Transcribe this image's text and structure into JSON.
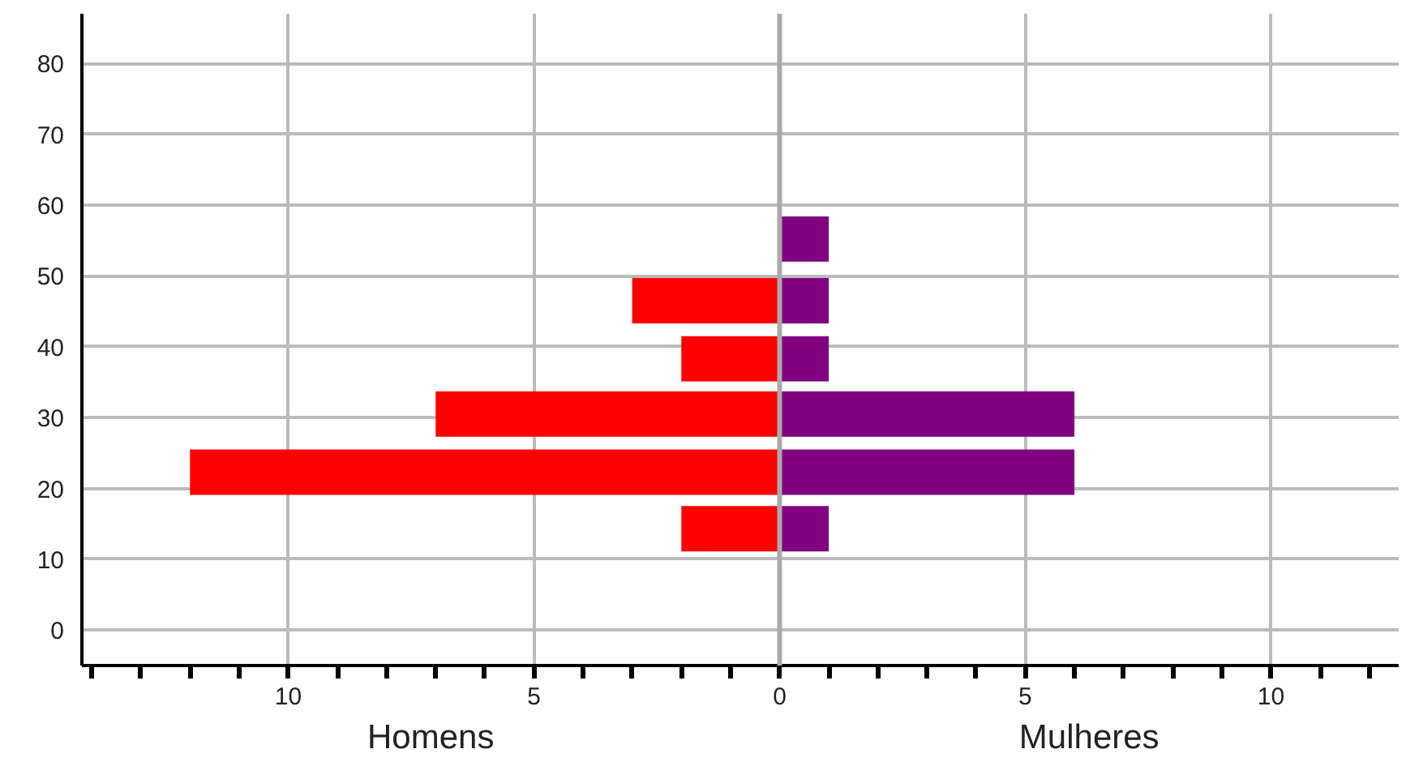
{
  "chart_data": {
    "type": "bar",
    "orientation": "horizontal",
    "stacked": true,
    "x": [
      14.3,
      22.3,
      30.5,
      38.3,
      46.5,
      55.2
    ],
    "series": [
      {
        "color": "#ff0000",
        "values": [
          -2,
          -12,
          -7,
          -2,
          -3,
          null
        ]
      },
      {
        "color": "#800080",
        "values": [
          1,
          6,
          6,
          1,
          1,
          1
        ]
      }
    ],
    "xlim": [
      -14.2,
      12.6
    ],
    "xticks": [
      {
        "value": -10,
        "label": "10"
      },
      {
        "value": -5,
        "label": "5"
      },
      0,
      5,
      10
    ],
    "ylim": [
      -5,
      87
    ],
    "yticks": [
      0,
      10,
      20,
      30,
      40,
      50,
      60,
      70,
      80
    ],
    "grid": true,
    "annotations": [
      "Homens",
      "Mulheres"
    ]
  }
}
